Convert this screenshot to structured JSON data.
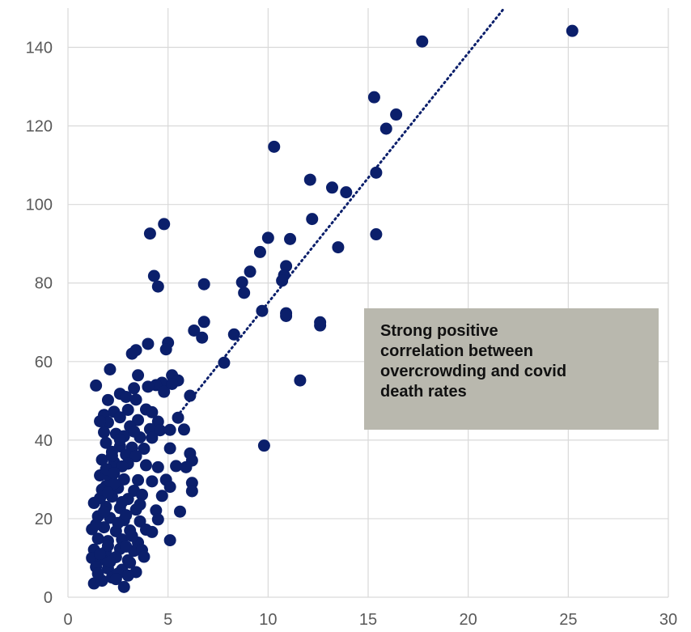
{
  "chart_data": {
    "type": "scatter",
    "title": "",
    "xlabel": "",
    "ylabel": "",
    "xlim": [
      0,
      30
    ],
    "ylim": [
      0,
      150
    ],
    "x_ticks": [
      "0",
      "5",
      "10",
      "15",
      "20",
      "25",
      "30"
    ],
    "y_ticks": [
      "0",
      "20",
      "40",
      "60",
      "80",
      "100",
      "120",
      "140"
    ],
    "grid": true,
    "legend": "none",
    "marker_color": "#0b1f6b",
    "trendline": {
      "style": "dotted",
      "x": [
        5.6,
        21.8
      ],
      "y": [
        47,
        150
      ]
    },
    "annotation": "Strong positive\ncorrelation between\novercrowding and covid\ndeath rates",
    "series": [
      {
        "points": [
          [
            25.2,
            144.2
          ],
          [
            17.7,
            141.5
          ],
          [
            15.3,
            127.3
          ],
          [
            16.4,
            122.9
          ],
          [
            15.9,
            119.3
          ],
          [
            15.4,
            108.1
          ],
          [
            10.3,
            114.7
          ],
          [
            12.1,
            106.3
          ],
          [
            13.2,
            104.3
          ],
          [
            13.9,
            103.1
          ],
          [
            12.2,
            96.3
          ],
          [
            10.0,
            91.5
          ],
          [
            11.1,
            91.2
          ],
          [
            13.5,
            89.1
          ],
          [
            15.4,
            92.4
          ],
          [
            9.6,
            87.9
          ],
          [
            9.1,
            82.9
          ],
          [
            10.9,
            84.3
          ],
          [
            10.8,
            82.0
          ],
          [
            10.7,
            80.6
          ],
          [
            8.7,
            80.2
          ],
          [
            8.8,
            77.5
          ],
          [
            9.7,
            72.9
          ],
          [
            10.9,
            72.3
          ],
          [
            10.9,
            71.6
          ],
          [
            12.6,
            69.2
          ],
          [
            12.6,
            70.0
          ],
          [
            11.6,
            55.2
          ],
          [
            9.8,
            38.6
          ],
          [
            8.3,
            66.9
          ],
          [
            7.8,
            59.7
          ],
          [
            6.8,
            79.7
          ],
          [
            6.8,
            70.1
          ],
          [
            6.7,
            66.1
          ],
          [
            6.3,
            67.9
          ],
          [
            6.1,
            51.3
          ],
          [
            4.1,
            92.6
          ],
          [
            4.8,
            95.0
          ],
          [
            4.3,
            81.8
          ],
          [
            4.5,
            79.1
          ],
          [
            4.0,
            64.5
          ],
          [
            5.0,
            64.8
          ],
          [
            4.9,
            63.1
          ],
          [
            3.4,
            62.9
          ],
          [
            3.2,
            62.0
          ],
          [
            2.1,
            58.0
          ],
          [
            1.4,
            53.9
          ],
          [
            3.5,
            56.5
          ],
          [
            5.2,
            56.5
          ],
          [
            5.5,
            55.2
          ],
          [
            4.7,
            54.6
          ],
          [
            5.2,
            54.3
          ],
          [
            4.4,
            54.0
          ],
          [
            4.0,
            53.6
          ],
          [
            3.3,
            53.2
          ],
          [
            4.8,
            52.3
          ],
          [
            2.6,
            51.8
          ],
          [
            2.9,
            51.0
          ],
          [
            3.4,
            50.3
          ],
          [
            2.0,
            50.2
          ],
          [
            1.8,
            46.4
          ],
          [
            2.3,
            47.2
          ],
          [
            3.0,
            47.7
          ],
          [
            3.9,
            47.8
          ],
          [
            4.2,
            47.1
          ],
          [
            2.6,
            45.8
          ],
          [
            3.5,
            45.1
          ],
          [
            4.5,
            44.7
          ],
          [
            5.5,
            45.7
          ],
          [
            2.0,
            44.5
          ],
          [
            3.1,
            43.5
          ],
          [
            4.1,
            42.8
          ],
          [
            4.6,
            42.5
          ],
          [
            5.1,
            42.6
          ],
          [
            5.8,
            42.7
          ],
          [
            1.8,
            42.0
          ],
          [
            2.4,
            41.6
          ],
          [
            2.8,
            41.0
          ],
          [
            3.6,
            40.7
          ],
          [
            4.2,
            40.6
          ],
          [
            1.9,
            39.3
          ],
          [
            2.6,
            38.4
          ],
          [
            3.2,
            38.1
          ],
          [
            3.8,
            37.8
          ],
          [
            5.1,
            37.9
          ],
          [
            2.2,
            37.0
          ],
          [
            2.9,
            36.3
          ],
          [
            3.4,
            35.9
          ],
          [
            6.1,
            36.6
          ],
          [
            6.2,
            34.8
          ],
          [
            1.7,
            35.0
          ],
          [
            2.3,
            34.4
          ],
          [
            3.0,
            34.0
          ],
          [
            3.9,
            33.6
          ],
          [
            4.5,
            33.1
          ],
          [
            5.4,
            33.4
          ],
          [
            5.9,
            33.1
          ],
          [
            1.6,
            31.0
          ],
          [
            2.1,
            30.5
          ],
          [
            2.8,
            30.0
          ],
          [
            3.5,
            29.8
          ],
          [
            4.2,
            29.5
          ],
          [
            4.9,
            29.9
          ],
          [
            6.2,
            29.1
          ],
          [
            1.9,
            28.3
          ],
          [
            2.5,
            27.8
          ],
          [
            3.3,
            27.1
          ],
          [
            5.1,
            28.1
          ],
          [
            6.2,
            27.0
          ],
          [
            1.6,
            25.2
          ],
          [
            2.2,
            25.6
          ],
          [
            3.0,
            25.0
          ],
          [
            3.7,
            26.1
          ],
          [
            4.7,
            25.8
          ],
          [
            1.3,
            24.0
          ],
          [
            1.9,
            23.0
          ],
          [
            2.6,
            22.7
          ],
          [
            3.4,
            22.3
          ],
          [
            4.4,
            22.1
          ],
          [
            5.6,
            21.8
          ],
          [
            1.5,
            20.6
          ],
          [
            2.1,
            20.2
          ],
          [
            2.8,
            19.6
          ],
          [
            3.6,
            19.3
          ],
          [
            4.5,
            19.8
          ],
          [
            1.2,
            17.3
          ],
          [
            1.8,
            17.8
          ],
          [
            2.4,
            16.8
          ],
          [
            3.1,
            17.0
          ],
          [
            3.9,
            17.2
          ],
          [
            4.2,
            16.6
          ],
          [
            1.5,
            14.9
          ],
          [
            2.0,
            14.3
          ],
          [
            2.7,
            14.7
          ],
          [
            3.5,
            13.9
          ],
          [
            5.1,
            14.5
          ],
          [
            1.3,
            12.1
          ],
          [
            1.9,
            11.6
          ],
          [
            2.6,
            12.3
          ],
          [
            3.3,
            11.8
          ],
          [
            3.7,
            12.0
          ],
          [
            1.2,
            10.0
          ],
          [
            1.7,
            9.6
          ],
          [
            2.4,
            10.2
          ],
          [
            3.0,
            9.4
          ],
          [
            3.8,
            10.3
          ],
          [
            1.4,
            7.7
          ],
          [
            2.0,
            7.3
          ],
          [
            2.7,
            7.0
          ],
          [
            3.4,
            6.4
          ],
          [
            1.3,
            3.5
          ],
          [
            1.7,
            4.2
          ],
          [
            2.2,
            5.0
          ],
          [
            2.8,
            2.6
          ],
          [
            2.5,
            6.0
          ],
          [
            1.6,
            44.8
          ],
          [
            2.7,
            33.3
          ],
          [
            2.3,
            28.9
          ],
          [
            1.8,
            21.8
          ],
          [
            2.9,
            20.9
          ],
          [
            2.5,
            18.9
          ],
          [
            2.0,
            13.1
          ],
          [
            3.1,
            8.8
          ],
          [
            2.4,
            4.6
          ],
          [
            1.5,
            6.0
          ],
          [
            2.2,
            36.0
          ],
          [
            1.9,
            32.6
          ],
          [
            2.7,
            24.2
          ],
          [
            3.2,
            15.6
          ],
          [
            2.1,
            9.0
          ],
          [
            2.6,
            40.1
          ],
          [
            1.7,
            27.4
          ],
          [
            3.6,
            23.6
          ],
          [
            2.3,
            31.6
          ],
          [
            1.4,
            18.5
          ],
          [
            3.3,
            42.2
          ],
          [
            2.9,
            12.9
          ],
          [
            2.0,
            26.6
          ],
          [
            1.6,
            11.0
          ],
          [
            3.0,
            5.5
          ]
        ]
      }
    ]
  }
}
